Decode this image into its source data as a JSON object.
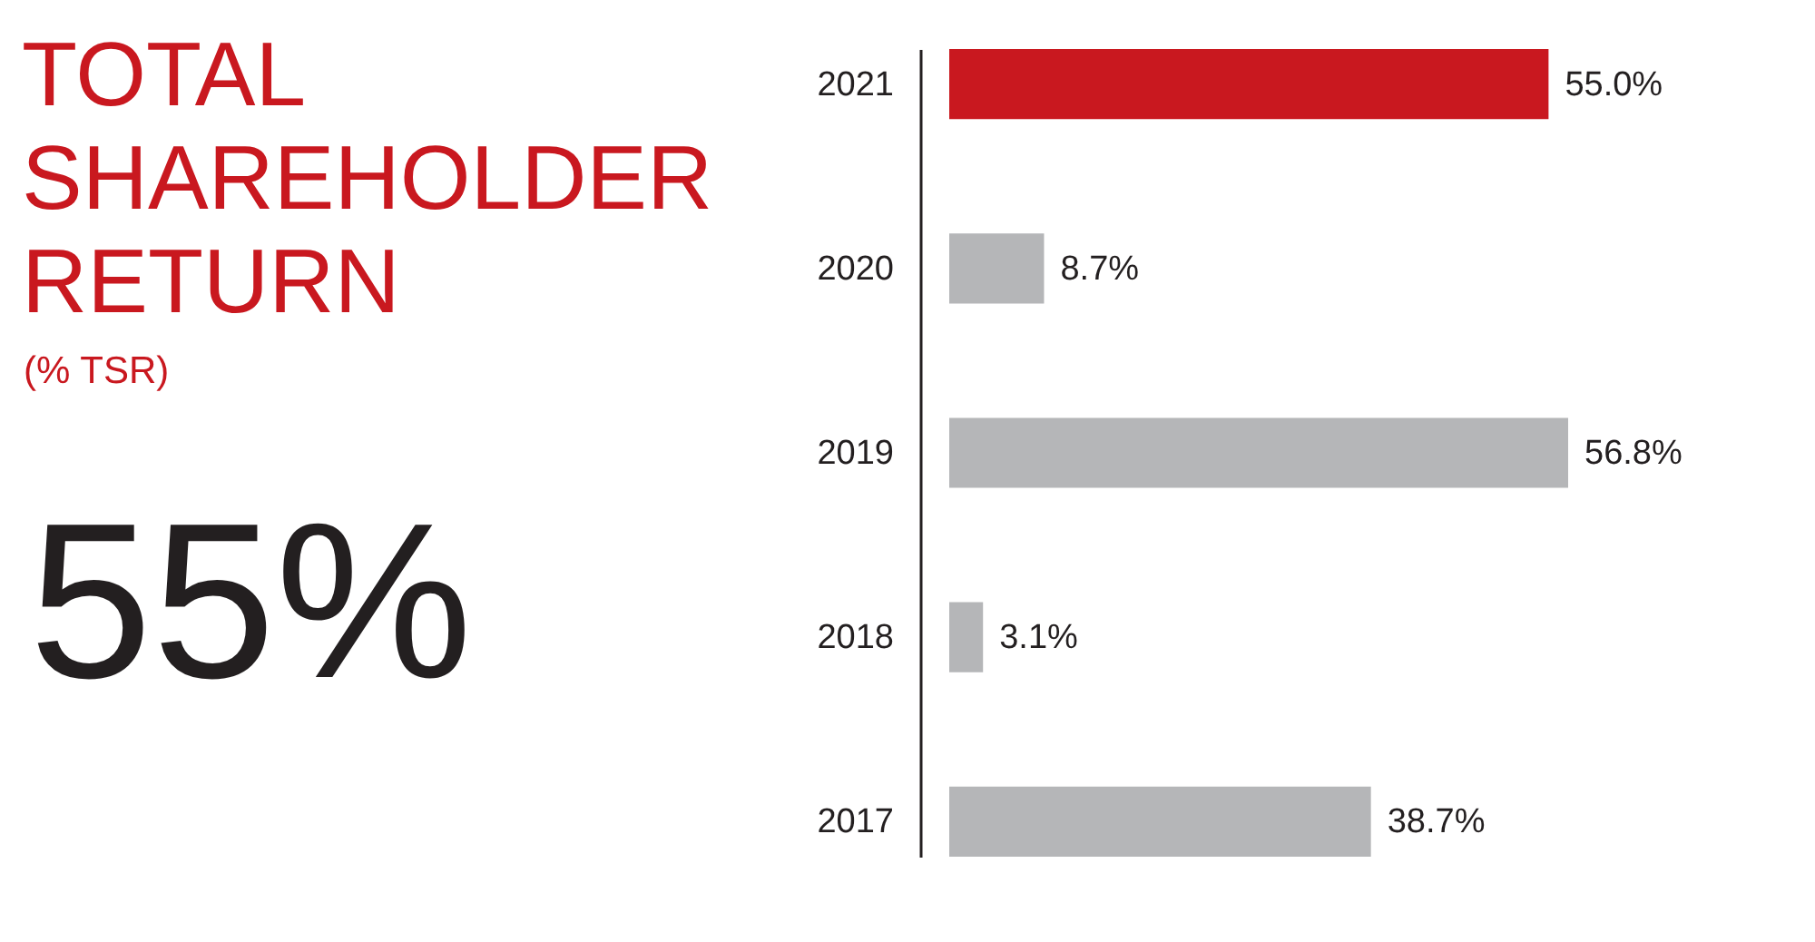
{
  "chart_data": {
    "type": "bar",
    "orientation": "horizontal",
    "title": "TOTAL SHAREHOLDER RETURN",
    "subtitle": "(% TSR)",
    "annotations": [
      "55%"
    ],
    "categories": [
      "2021",
      "2020",
      "2019",
      "2018",
      "2017"
    ],
    "values": [
      55.0,
      8.7,
      56.8,
      3.1,
      38.7
    ],
    "colors": [
      "#c9181f",
      "#b5b6b8",
      "#b5b6b8",
      "#b5b6b8",
      "#b5b6b8"
    ],
    "value_labels": [
      "55.0%",
      "8.7%",
      "56.8%",
      "3.1%",
      "38.7%"
    ],
    "tick_labels": "y"
  }
}
